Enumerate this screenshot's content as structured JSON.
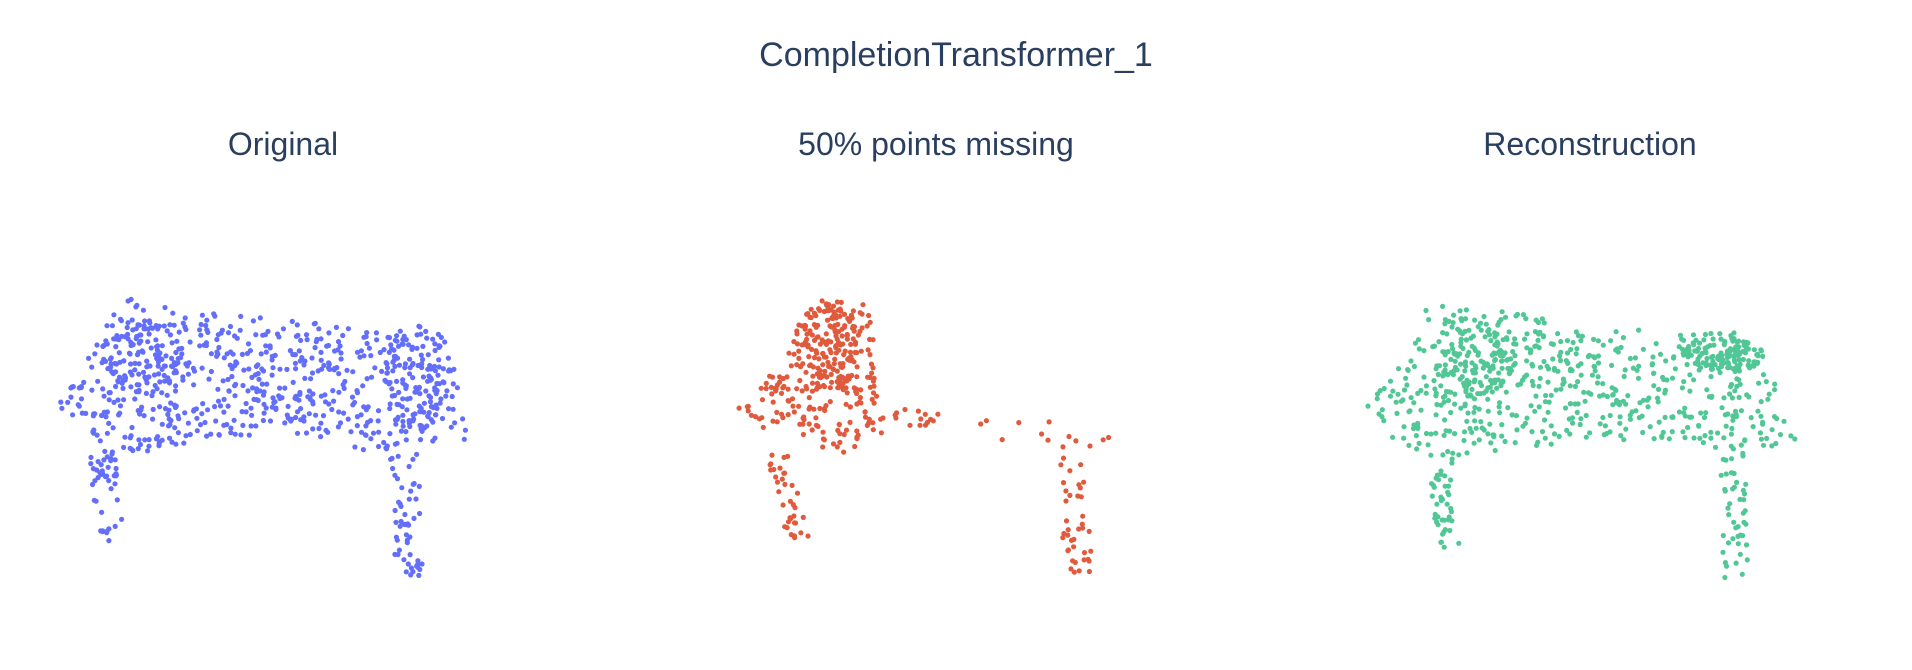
{
  "title": "CompletionTransformer_1",
  "colors": {
    "original": "#636efa",
    "missing": "#e05a3d",
    "reconstruction": "#52c796",
    "text": "#2a3f5f"
  },
  "chart_data": [
    {
      "type": "scatter",
      "title": "Original",
      "color": "#636efa",
      "point_count": 900,
      "grid": false,
      "axes_visible": false,
      "x": [
        -1.0,
        1.0
      ],
      "y": [
        -1.0,
        1.0
      ],
      "z": [
        -1.0,
        1.0
      ],
      "shape": "table point cloud (top slab with four legs)"
    },
    {
      "type": "scatter",
      "title": "50% points missing",
      "color": "#e05a3d",
      "point_count": 450,
      "grid": false,
      "axes_visible": false,
      "x": [
        -1.0,
        1.0
      ],
      "y": [
        -1.0,
        1.0
      ],
      "z": [
        -1.0,
        1.0
      ],
      "shape": "partial table point cloud"
    },
    {
      "type": "scatter",
      "title": "Reconstruction",
      "color": "#52c796",
      "point_count": 900,
      "grid": false,
      "axes_visible": false,
      "x": [
        -1.0,
        1.0
      ],
      "y": [
        -1.0,
        1.0
      ],
      "z": [
        -1.0,
        1.0
      ],
      "shape": "reconstructed table point cloud"
    }
  ]
}
